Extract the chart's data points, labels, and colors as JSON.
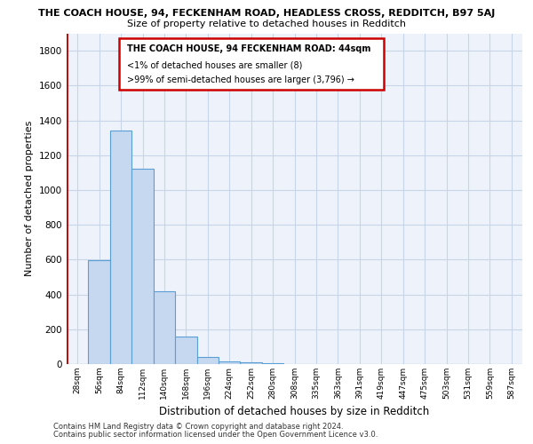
{
  "title": "THE COACH HOUSE, 94, FECKENHAM ROAD, HEADLESS CROSS, REDDITCH, B97 5AJ",
  "subtitle": "Size of property relative to detached houses in Redditch",
  "xlabel": "Distribution of detached houses by size in Redditch",
  "ylabel": "Number of detached properties",
  "categories": [
    "28sqm",
    "56sqm",
    "84sqm",
    "112sqm",
    "140sqm",
    "168sqm",
    "196sqm",
    "224sqm",
    "252sqm",
    "280sqm",
    "308sqm",
    "335sqm",
    "363sqm",
    "391sqm",
    "419sqm",
    "447sqm",
    "475sqm",
    "503sqm",
    "531sqm",
    "559sqm",
    "587sqm"
  ],
  "values": [
    0,
    597,
    1340,
    1120,
    420,
    160,
    40,
    15,
    8,
    4,
    2,
    1,
    1,
    0,
    0,
    0,
    0,
    0,
    0,
    0,
    0
  ],
  "bar_color": "#c5d8f0",
  "bar_edge_color": "#5a9fd4",
  "highlight_color": "#c00000",
  "annotation_line1": "THE COACH HOUSE, 94 FECKENHAM ROAD: 44sqm",
  "annotation_line2": "<1% of detached houses are smaller (8)",
  "annotation_line3": ">99% of semi-detached houses are larger (3,796) →",
  "ylim": [
    0,
    1900
  ],
  "yticks": [
    0,
    200,
    400,
    600,
    800,
    1000,
    1200,
    1400,
    1600,
    1800
  ],
  "bg_color": "#eef3fb",
  "grid_color": "#c8d4e8",
  "footer1": "Contains HM Land Registry data © Crown copyright and database right 2024.",
  "footer2": "Contains public sector information licensed under the Open Government Licence v3.0."
}
